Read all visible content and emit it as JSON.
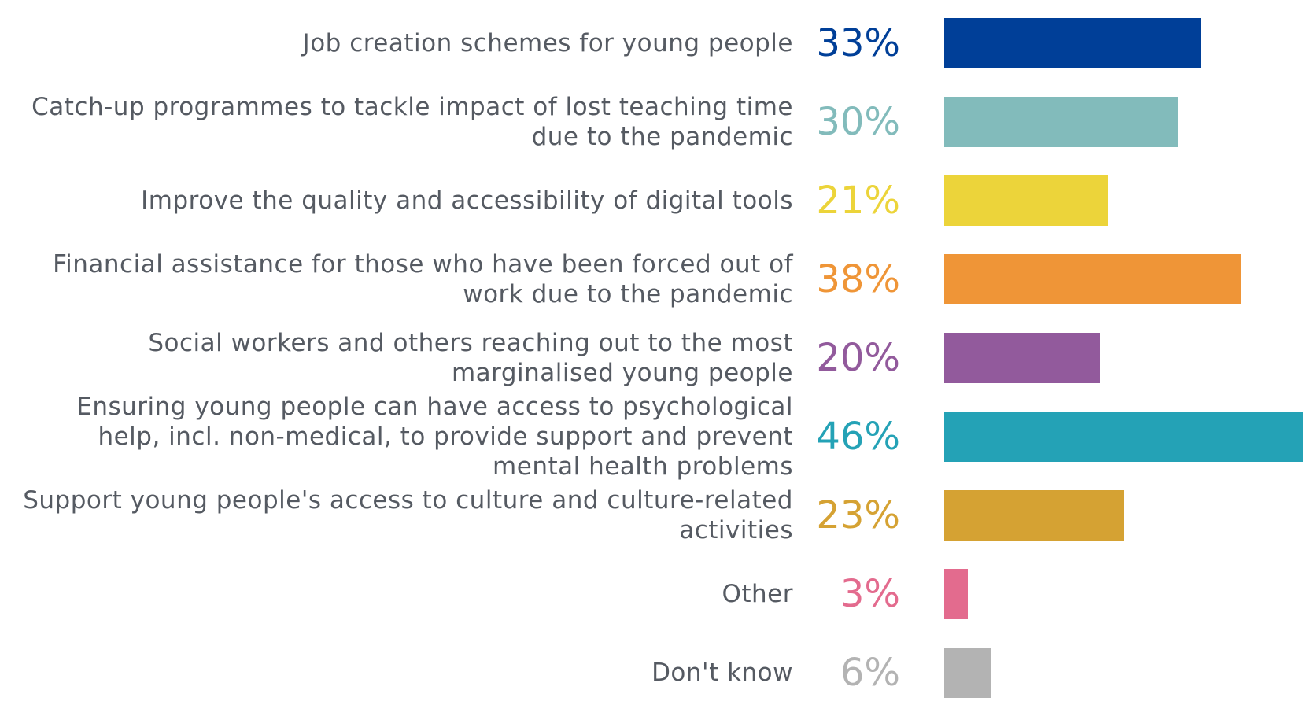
{
  "chart_data": {
    "type": "bar",
    "orientation": "horizontal",
    "title": "",
    "xlabel": "",
    "ylabel": "",
    "xlim": [
      0,
      46
    ],
    "grid": false,
    "legend": "none",
    "items": [
      {
        "label": "Job creation schemes for young people",
        "value": 33,
        "value_label": "33%",
        "color": "#003f98"
      },
      {
        "label": "Catch-up programmes to tackle impact of lost teaching time\ndue to the pandemic",
        "value": 30,
        "value_label": "30%",
        "color": "#82bbbb"
      },
      {
        "label": "Improve the quality and accessibility of digital tools",
        "value": 21,
        "value_label": "21%",
        "color": "#ecd43a"
      },
      {
        "label": "Financial assistance for those who have been forced out of\nwork due to the pandemic",
        "value": 38,
        "value_label": "38%",
        "color": "#ef9537"
      },
      {
        "label": "Social workers and others reaching out to the most\nmarginalised young people",
        "value": 20,
        "value_label": "20%",
        "color": "#925a9c"
      },
      {
        "label": "Ensuring young people can have access to psychological\nhelp, incl. non-medical, to provide support and prevent\nmental health problems",
        "value": 46,
        "value_label": "46%",
        "color": "#24a2b6"
      },
      {
        "label": "Support young people's access to culture and culture-related\nactivities",
        "value": 23,
        "value_label": "23%",
        "color": "#d5a233"
      },
      {
        "label": "Other",
        "value": 3,
        "value_label": "3%",
        "color": "#e36b8e"
      },
      {
        "label": "Don't know",
        "value": 6,
        "value_label": "6%",
        "color": "#b3b3b3"
      }
    ]
  }
}
